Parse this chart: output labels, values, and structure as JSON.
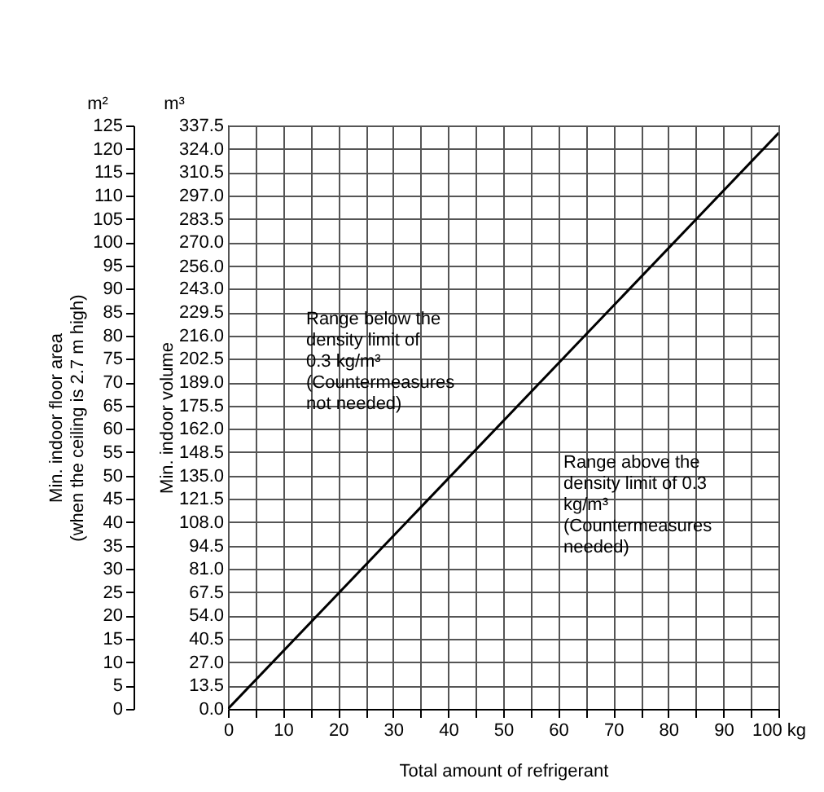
{
  "chart_data": {
    "type": "line",
    "xlabel": "Total amount of refrigerant",
    "ylabel": "Min. indoor volume",
    "y2label": "Min. indoor floor area\n(when the ceiling is 2.7 m high)",
    "x": [
      0,
      100
    ],
    "series": [
      {
        "color": "#000000",
        "values": [
          0,
          333
        ]
      }
    ],
    "xlim": [
      0,
      100
    ],
    "xticks": [
      0,
      {
        "value": 5,
        "label": null
      },
      10,
      {
        "value": 15,
        "label": null
      },
      20,
      {
        "value": 25,
        "label": null
      },
      30,
      {
        "value": 35,
        "label": null
      },
      40,
      {
        "value": 45,
        "label": null
      },
      50,
      {
        "value": 55,
        "label": null
      },
      60,
      {
        "value": 65,
        "label": null
      },
      70,
      {
        "value": 75,
        "label": null
      },
      80,
      {
        "value": 85,
        "label": null
      },
      90,
      {
        "value": 95,
        "label": null
      },
      {
        "value": 100,
        "label": "100 kg"
      }
    ],
    "ylim": [
      0,
      337.5
    ],
    "yticks": [
      {
        "value": 0,
        "label": "0.0"
      },
      13.5,
      {
        "value": 27,
        "label": "27.0"
      },
      40.5,
      {
        "value": 54,
        "label": "54.0"
      },
      67.5,
      {
        "value": 81,
        "label": "81.0"
      },
      94.5,
      {
        "value": 108,
        "label": "108.0"
      },
      121.5,
      {
        "value": 135,
        "label": "135.0"
      },
      148.5,
      {
        "value": 162,
        "label": "162.0"
      },
      175.5,
      {
        "value": 189,
        "label": "189.0"
      },
      202.5,
      {
        "value": 216,
        "label": "216.0"
      },
      229.5,
      {
        "value": 243,
        "label": "243.0"
      },
      {
        "value": 256,
        "label": "256.0"
      },
      {
        "value": 270,
        "label": "270.0"
      },
      283.5,
      {
        "value": 297,
        "label": "297.0"
      },
      310.5,
      {
        "value": 324,
        "label": "324.0"
      },
      337.5
    ],
    "y2lim": [
      0,
      125
    ],
    "y2ticks": [
      0,
      5,
      10,
      15,
      20,
      25,
      30,
      35,
      40,
      45,
      50,
      55,
      60,
      65,
      70,
      75,
      80,
      85,
      90,
      95,
      100,
      105,
      110,
      115,
      120,
      125
    ],
    "grid": true,
    "annotations": [
      "m²",
      "m³",
      "Range below the\ndensity limit of\n0.3 kg/m³\n(Countermeasures\nnot needed)",
      "Range above the\ndensity limit of 0.3\nkg/m³\n(Countermeasures\nneeded)"
    ]
  }
}
